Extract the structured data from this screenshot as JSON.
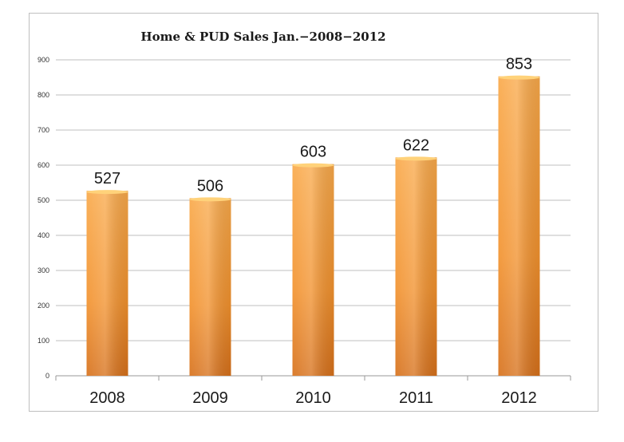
{
  "chart_data": {
    "type": "bar",
    "title": "Home & PUD Sales Jan.−2008−2012",
    "categories": [
      "2008",
      "2009",
      "2010",
      "2011",
      "2012"
    ],
    "values": [
      527,
      506,
      603,
      622,
      853
    ],
    "data_labels": [
      "527",
      "506",
      "603",
      "622",
      "853"
    ],
    "yticks": [
      0,
      100,
      200,
      300,
      400,
      500,
      600,
      700,
      800,
      900
    ],
    "ylim": [
      0,
      900
    ],
    "xlabel": "",
    "ylabel": "",
    "grid": true,
    "legend": "none",
    "colors": {
      "bar_light": "#f9a94a",
      "bar_mid": "#f2922e",
      "bar_dark": "#d7711b",
      "grid": "#bfbfbf"
    }
  }
}
